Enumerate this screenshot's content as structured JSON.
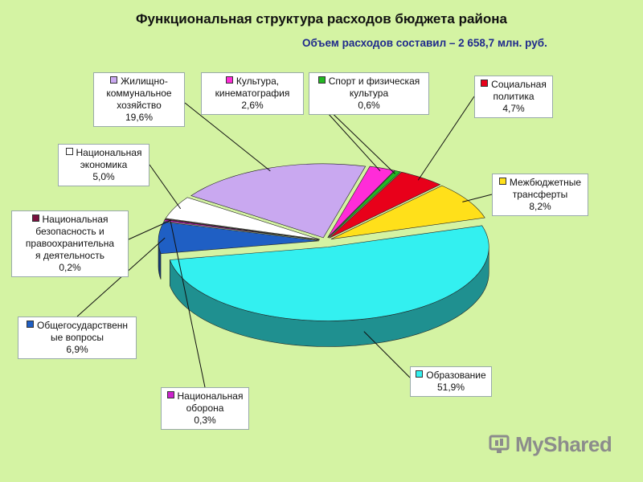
{
  "title": "Функциональная структура расходов бюджета района",
  "subtitle": "Объем расходов составил – 2 658,7 млн. руб.",
  "watermark": "MyShared",
  "chart_data": {
    "type": "pie",
    "title": "Функциональная структура расходов бюджета района",
    "subtitle": "Объем расходов составил – 2 658,7 млн. руб.",
    "unit": "%",
    "series": [
      {
        "name": "Общегосударственные вопросы",
        "label": "Общегосударственн\nые вопросы",
        "value": 6.9,
        "pct_text": "6,9%",
        "color": "#1f5fc4"
      },
      {
        "name": "Национальная оборона",
        "label": "Национальная\nоборона",
        "value": 0.3,
        "pct_text": "0,3%",
        "color": "#cc22cc"
      },
      {
        "name": "Национальная безопасность и правоохранительная деятельность",
        "label": "Национальная\nбезопасность и\nправоохранительна\nя деятельность",
        "value": 0.2,
        "pct_text": "0,2%",
        "color": "#7a1040"
      },
      {
        "name": "Национальная экономика",
        "label": "Национальная\nэкономика",
        "value": 5.0,
        "pct_text": "5,0%",
        "color": "#ffffff"
      },
      {
        "name": "Жилищно-коммунальное хозяйство",
        "label": "Жилищно-\nкоммунальное\nхозяйство",
        "value": 19.6,
        "pct_text": "19,6%",
        "color": "#c9a8f0"
      },
      {
        "name": "Культура, кинематография",
        "label": "Культура,\nкинематография",
        "value": 2.6,
        "pct_text": "2,6%",
        "color": "#ff2cd8"
      },
      {
        "name": "Спорт и физическая культура",
        "label": "Спорт и физическая\nкультура",
        "value": 0.6,
        "pct_text": "0,6%",
        "color": "#22b822"
      },
      {
        "name": "Социальная политика",
        "label": "Социальная\nполитика",
        "value": 4.7,
        "pct_text": "4,7%",
        "color": "#e8001a"
      },
      {
        "name": "Межбюджетные трансферты",
        "label": "Межбюджетные\nтрансферты",
        "value": 8.2,
        "pct_text": "8,2%",
        "color": "#ffe01a"
      },
      {
        "name": "Образование",
        "label": "Образование",
        "value": 51.9,
        "pct_text": "51,9%",
        "color": "#33f0f0"
      }
    ]
  }
}
